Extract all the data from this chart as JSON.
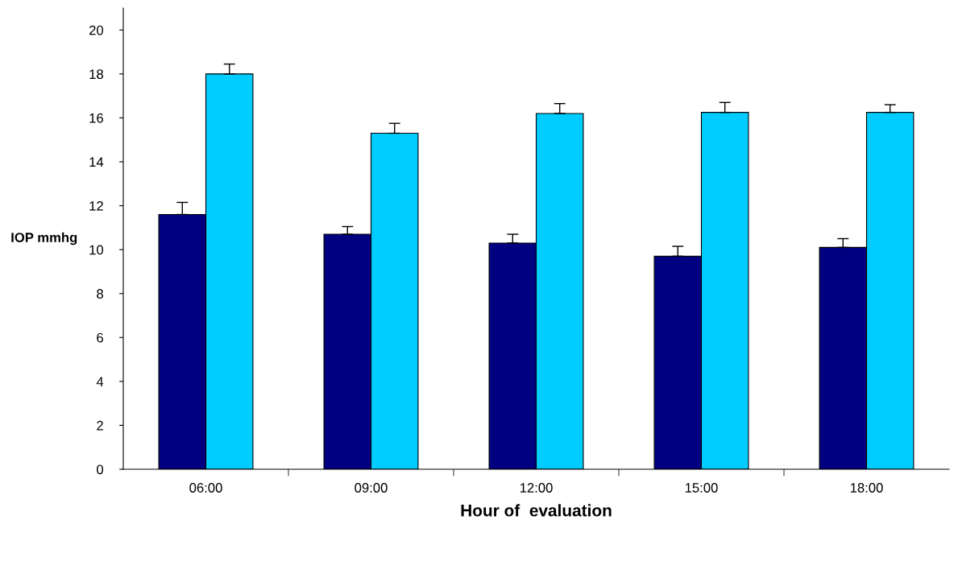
{
  "chart_data": {
    "type": "bar",
    "xlabel": "Hour of  evaluation",
    "ylabel": "IOP mmhg",
    "categories": [
      "06:00",
      "09:00",
      "12:00",
      "15:00",
      "18:00"
    ],
    "series": [
      {
        "color": "#000080",
        "values": [
          11.6,
          10.7,
          10.3,
          9.7,
          10.1
        ],
        "errors": [
          0.55,
          0.35,
          0.4,
          0.45,
          0.4
        ]
      },
      {
        "color": "#00ccff",
        "values": [
          18.0,
          15.3,
          16.2,
          16.25,
          16.25
        ],
        "errors": [
          0.45,
          0.45,
          0.45,
          0.45,
          0.35
        ]
      }
    ],
    "ylim": [
      0,
      21
    ],
    "yticks": [
      0,
      2,
      4,
      6,
      8,
      10,
      12,
      14,
      16,
      18,
      20
    ],
    "grid": false,
    "legend": false
  }
}
